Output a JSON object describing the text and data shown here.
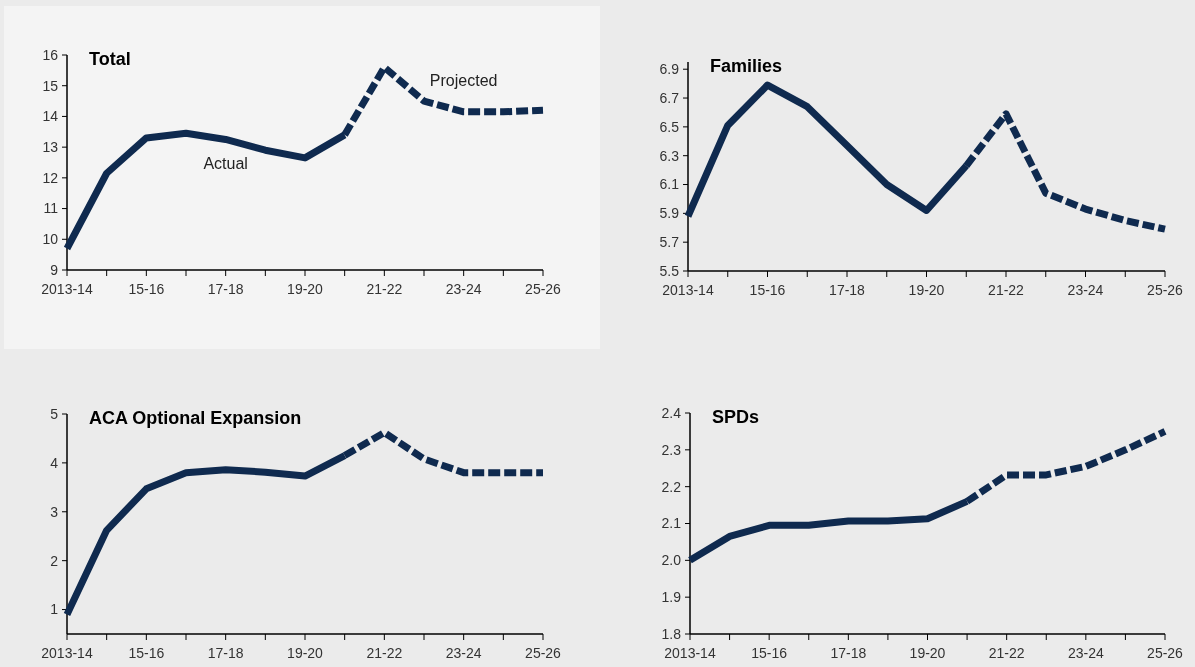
{
  "chart_data": [
    {
      "type": "line",
      "title": "Total",
      "categories": [
        "2013-14",
        null,
        "15-16",
        null,
        "17-18",
        null,
        "19-20",
        null,
        "21-22",
        null,
        "23-24",
        null,
        "25-26"
      ],
      "ylim": [
        9,
        16
      ],
      "yticks": [
        9,
        10,
        11,
        12,
        13,
        14,
        15,
        16
      ],
      "series": [
        {
          "color": "#0f2a4f",
          "line_style": "solid",
          "values": [
            9.7,
            12.15,
            13.3,
            13.45,
            13.25,
            12.9,
            12.65,
            13.4,
            null,
            null,
            null,
            null,
            null
          ]
        },
        {
          "color": "#0f2a4f",
          "line_style": "dashed",
          "values": [
            null,
            null,
            null,
            null,
            null,
            null,
            null,
            13.4,
            15.6,
            14.5,
            14.15,
            14.15,
            14.2
          ]
        }
      ],
      "annotations": [
        "Actual",
        "Projected"
      ]
    },
    {
      "type": "line",
      "title": "Families",
      "categories": [
        "2013-14",
        null,
        "15-16",
        null,
        "17-18",
        null,
        "19-20",
        null,
        "21-22",
        null,
        "23-24",
        null,
        "25-26"
      ],
      "ylim": [
        5.5,
        6.95
      ],
      "yticks": [
        5.5,
        5.7,
        5.9,
        6.1,
        6.3,
        6.5,
        6.7,
        6.9
      ],
      "series": [
        {
          "color": "#0f2a4f",
          "line_style": "solid",
          "values": [
            5.88,
            6.51,
            6.79,
            6.64,
            6.37,
            6.1,
            5.92,
            6.23,
            null,
            null,
            null,
            null,
            null
          ]
        },
        {
          "color": "#0f2a4f",
          "line_style": "dashed",
          "values": [
            null,
            null,
            null,
            null,
            null,
            null,
            null,
            6.23,
            6.59,
            6.04,
            5.93,
            5.85,
            5.79
          ]
        }
      ]
    },
    {
      "type": "line",
      "title": "ACA Optional Expansion",
      "categories": [
        "2013-14",
        null,
        "15-16",
        null,
        "17-18",
        null,
        "19-20",
        null,
        "21-22",
        null,
        "23-24",
        null,
        "25-26"
      ],
      "ylim": [
        0.5,
        5
      ],
      "yticks": [
        1,
        2,
        3,
        4,
        5
      ],
      "series": [
        {
          "color": "#0f2a4f",
          "line_style": "solid",
          "values": [
            0.9,
            2.62,
            3.47,
            3.8,
            3.86,
            3.81,
            3.73,
            4.15,
            null,
            null,
            null,
            null,
            null
          ]
        },
        {
          "color": "#0f2a4f",
          "line_style": "dashed",
          "values": [
            null,
            null,
            null,
            null,
            null,
            null,
            null,
            4.15,
            4.62,
            4.08,
            3.8,
            3.8,
            3.8
          ]
        }
      ]
    },
    {
      "type": "line",
      "title": "SPDs",
      "categories": [
        "2013-14",
        null,
        "15-16",
        null,
        "17-18",
        null,
        "19-20",
        null,
        "21-22",
        null,
        "23-24",
        null,
        "25-26"
      ],
      "ylim": [
        1.8,
        2.4
      ],
      "yticks": [
        {
          "value": 1.8,
          "label": "1.8"
        },
        {
          "value": 1.9,
          "label": "1.9"
        },
        {
          "value": 2,
          "label": "2.0"
        },
        {
          "value": 2.1,
          "label": "2.1"
        },
        {
          "value": 2.2,
          "label": "2.2"
        },
        {
          "value": 2.3,
          "label": "2.3"
        },
        {
          "value": 2.4,
          "label": "2.4"
        }
      ],
      "series": [
        {
          "color": "#0f2a4f",
          "line_style": "solid",
          "values": [
            2.0,
            2.065,
            2.095,
            2.095,
            2.107,
            2.107,
            2.113,
            2.16,
            null,
            null,
            null,
            null,
            null
          ]
        },
        {
          "color": "#0f2a4f",
          "line_style": "dashed",
          "values": [
            null,
            null,
            null,
            null,
            null,
            null,
            null,
            2.16,
            2.232,
            2.232,
            2.255,
            2.3,
            2.35
          ]
        }
      ]
    }
  ]
}
